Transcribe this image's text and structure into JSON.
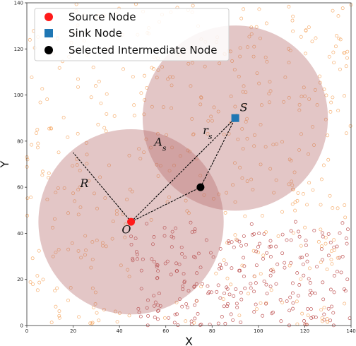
{
  "chart_data": {
    "type": "scatter",
    "xlabel": "X",
    "ylabel": "Y",
    "xlim": [
      0,
      140
    ],
    "ylim": [
      0,
      140
    ],
    "xticks": [
      "0",
      "20",
      "40",
      "60",
      "80",
      "100",
      "120",
      "140"
    ],
    "yticks": [
      "0",
      "20",
      "40",
      "60",
      "80",
      "100",
      "120",
      "140"
    ],
    "grid": false,
    "legend_position": "top-left",
    "legend": [
      {
        "label": "Source Node",
        "marker": "circle",
        "color": "#ff1a1a"
      },
      {
        "label": "Sink Node",
        "marker": "square",
        "color": "#1f77b4"
      },
      {
        "label": "Selected Intermediate Node",
        "marker": "circle",
        "color": "#000000"
      }
    ],
    "source": {
      "x": 45,
      "y": 45
    },
    "sink": {
      "x": 90,
      "y": 90
    },
    "intermediate": {
      "x": 75,
      "y": 60
    },
    "regions": [
      {
        "name": "R",
        "center": [
          45,
          45
        ],
        "radius": 40
      },
      {
        "name": "r_s",
        "center": [
          90,
          90
        ],
        "radius": 40
      }
    ],
    "segments": [
      {
        "from": [
          45,
          45
        ],
        "to": [
          90,
          90
        ]
      },
      {
        "from": [
          45,
          45
        ],
        "to": [
          75,
          60
        ]
      },
      {
        "from": [
          75,
          60
        ],
        "to": [
          90,
          90
        ]
      },
      {
        "from": [
          45,
          45
        ],
        "to": [
          20,
          75
        ]
      }
    ],
    "annotations": [
      {
        "text": "S",
        "x": 92,
        "y": 93
      },
      {
        "text": "O",
        "x": 41,
        "y": 40
      },
      {
        "text": "R",
        "x": 23,
        "y": 60
      },
      {
        "text": "A",
        "sub": "s",
        "x": 55,
        "y": 78
      },
      {
        "text": "r",
        "sub": "s",
        "x": 76,
        "y": 83
      }
    ],
    "colors": {
      "region_fill": "#b56a6a",
      "node_orange": "#f5a35c",
      "node_red": "#b53a3a",
      "line": "#000000"
    }
  }
}
